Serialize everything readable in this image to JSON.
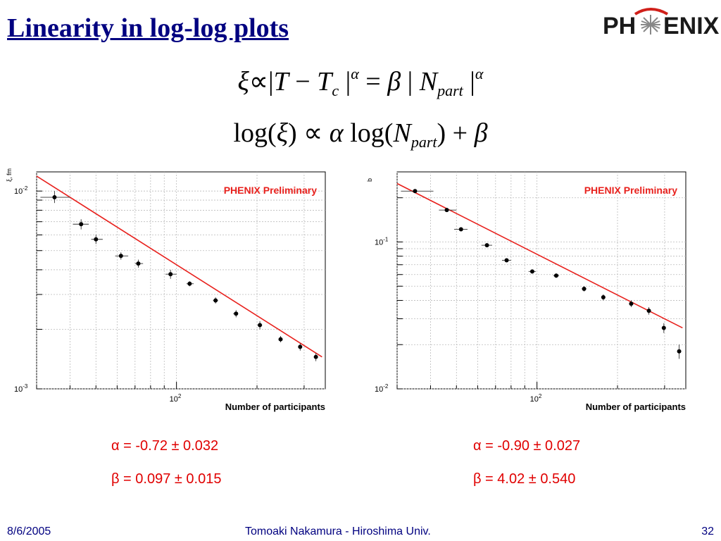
{
  "slide": {
    "title": "Linearity in log-log plots",
    "logo_text": "PHENIX",
    "equation_1": {
      "xi": "ξ",
      "prop": "∝|",
      "T": "T",
      "minus": " − ",
      "Tc_T": "T",
      "c_sub": "c",
      "bar1": " |",
      "alpha1": "α",
      "eq": " = ",
      "beta": "β",
      "bar2": " | ",
      "N": "N",
      "part": "part",
      "bar3": " |",
      "alpha2": "α"
    },
    "equation_2": {
      "log1": "log(",
      "xi": "ξ",
      "close1": ") ∝ ",
      "alpha": "α",
      "log2": " log(",
      "N": "N",
      "part": "part",
      "close2": ") + ",
      "beta": "β"
    },
    "footer": {
      "date": "8/6/2005",
      "author": "Tomoaki Nakamura - Hiroshima Univ.",
      "page": "32"
    }
  },
  "fit_results": [
    {
      "alpha": "α = -0.72 ± 0.032",
      "beta": "β = 0.097 ± 0.015"
    },
    {
      "alpha": "α = -0.90 ± 0.027",
      "beta": "β = 4.02 ± 0.540"
    }
  ],
  "chart_data": [
    {
      "type": "scatter",
      "ylabel": "ξ, fm",
      "xlabel": "Number of participants",
      "annotation": "PHENIX Preliminary",
      "xscale": "log",
      "yscale": "log",
      "xlim": [
        30,
        360
      ],
      "ylim": [
        0.001,
        0.0125
      ],
      "x_ticks": [
        {
          "value": 100,
          "label": "10",
          "exp": "2"
        }
      ],
      "y_ticks": [
        {
          "value": 0.01,
          "label": "10",
          "exp": "-2"
        },
        {
          "value": 0.001,
          "label": "10",
          "exp": "-3"
        }
      ],
      "grid": true,
      "colors": {
        "fit": "#e8211d",
        "points": "#000000",
        "annotation": "#e8211d"
      },
      "fit_line": {
        "x": [
          30,
          350
        ],
        "y": [
          0.0119,
          0.00145
        ]
      },
      "points": [
        {
          "x": 35,
          "y": 0.0093,
          "xerr": [
            31,
            40
          ],
          "yerr": [
            0.0087,
            0.01
          ]
        },
        {
          "x": 44,
          "y": 0.0068,
          "xerr": [
            41,
            47
          ],
          "yerr": [
            0.0064,
            0.0072
          ]
        },
        {
          "x": 50,
          "y": 0.0057,
          "xerr": [
            48,
            53
          ],
          "yerr": [
            0.0054,
            0.006
          ]
        },
        {
          "x": 62,
          "y": 0.0047,
          "xerr": [
            59,
            66
          ],
          "yerr": [
            0.0045,
            0.0049
          ]
        },
        {
          "x": 72,
          "y": 0.0043,
          "xerr": [
            70,
            75
          ],
          "yerr": [
            0.0041,
            0.0045
          ]
        },
        {
          "x": 95,
          "y": 0.0038,
          "xerr": [
            91,
            100
          ],
          "yerr": [
            0.0036,
            0.004
          ]
        },
        {
          "x": 112,
          "y": 0.0034,
          "xerr": [
            109,
            116
          ],
          "yerr": [
            0.0033,
            0.0035
          ]
        },
        {
          "x": 140,
          "y": 0.0028,
          "xerr": [
            137,
            143
          ],
          "yerr": [
            0.0027,
            0.0029
          ]
        },
        {
          "x": 167,
          "y": 0.0024,
          "xerr": [
            163,
            170
          ],
          "yerr": [
            0.0023,
            0.0025
          ]
        },
        {
          "x": 205,
          "y": 0.0021,
          "xerr": [
            201,
            209
          ],
          "yerr": [
            0.002,
            0.0022
          ]
        },
        {
          "x": 245,
          "y": 0.00178,
          "xerr": [
            241,
            249
          ],
          "yerr": [
            0.00172,
            0.00185
          ]
        },
        {
          "x": 290,
          "y": 0.00163,
          "xerr": [
            286,
            294
          ],
          "yerr": [
            0.00156,
            0.0017
          ]
        },
        {
          "x": 332,
          "y": 0.00145,
          "xerr": [
            328,
            336
          ],
          "yerr": [
            0.00138,
            0.00152
          ]
        }
      ]
    },
    {
      "type": "scatter",
      "ylabel": "b",
      "xlabel": "Number of participants",
      "annotation": "PHENIX Preliminary",
      "xscale": "log",
      "yscale": "log",
      "xlim": [
        30,
        360
      ],
      "ylim": [
        0.01,
        0.3
      ],
      "x_ticks": [
        {
          "value": 100,
          "label": "10",
          "exp": "2"
        }
      ],
      "y_ticks": [
        {
          "value": 0.1,
          "label": "10",
          "exp": "-1"
        },
        {
          "value": 0.01,
          "label": "10",
          "exp": "-2"
        }
      ],
      "grid": true,
      "colors": {
        "fit": "#e8211d",
        "points": "#000000",
        "annotation": "#e8211d"
      },
      "fit_line": {
        "x": [
          30,
          350
        ],
        "y": [
          0.25,
          0.026
        ]
      },
      "points": [
        {
          "x": 35,
          "y": 0.222,
          "xerr": [
            31,
            41
          ],
          "yerr": [
            0.218,
            0.226
          ]
        },
        {
          "x": 46,
          "y": 0.165,
          "xerr": [
            43,
            50
          ],
          "yerr": [
            0.162,
            0.168
          ]
        },
        {
          "x": 52,
          "y": 0.122,
          "xerr": [
            49,
            55
          ],
          "yerr": [
            0.119,
            0.125
          ]
        },
        {
          "x": 65,
          "y": 0.095,
          "xerr": [
            62,
            68
          ],
          "yerr": [
            0.093,
            0.097
          ]
        },
        {
          "x": 77,
          "y": 0.075,
          "xerr": [
            74,
            80
          ],
          "yerr": [
            0.073,
            0.077
          ]
        },
        {
          "x": 96,
          "y": 0.063,
          "xerr": [
            93,
            99
          ],
          "yerr": [
            0.061,
            0.065
          ]
        },
        {
          "x": 118,
          "y": 0.059,
          "xerr": [
            115,
            121
          ],
          "yerr": [
            0.057,
            0.061
          ]
        },
        {
          "x": 150,
          "y": 0.048,
          "xerr": [
            147,
            153
          ],
          "yerr": [
            0.046,
            0.05
          ]
        },
        {
          "x": 177,
          "y": 0.042,
          "xerr": [
            174,
            180
          ],
          "yerr": [
            0.04,
            0.044
          ]
        },
        {
          "x": 225,
          "y": 0.038,
          "xerr": [
            221,
            229
          ],
          "yerr": [
            0.036,
            0.04
          ]
        },
        {
          "x": 262,
          "y": 0.034,
          "xerr": [
            258,
            266
          ],
          "yerr": [
            0.032,
            0.036
          ]
        },
        {
          "x": 298,
          "y": 0.026,
          "xerr": [
            294,
            302
          ],
          "yerr": [
            0.024,
            0.028
          ]
        },
        {
          "x": 340,
          "y": 0.018,
          "xerr": [
            336,
            344
          ],
          "yerr": [
            0.016,
            0.02
          ]
        }
      ]
    }
  ]
}
